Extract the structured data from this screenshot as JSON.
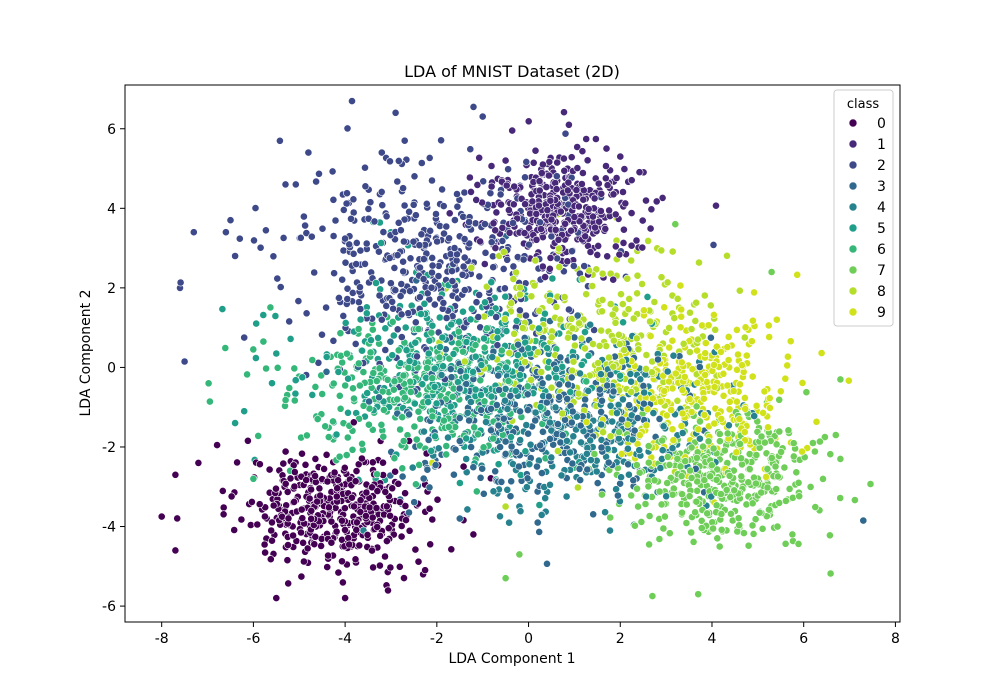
{
  "chart_data": {
    "type": "scatter",
    "title": "LDA of MNIST Dataset (2D)",
    "xlabel": "LDA Component 1",
    "ylabel": "LDA Component 2",
    "xlim": [
      -8.8,
      8.1
    ],
    "ylim": [
      -6.4,
      7.1
    ],
    "xticks": [
      "-8",
      "-6",
      "-4",
      "-2",
      "0",
      "2",
      "4",
      "6",
      "8"
    ],
    "xtick_values": [
      -8,
      -6,
      -4,
      -2,
      0,
      2,
      4,
      6,
      8
    ],
    "yticks": [
      "-6",
      "-4",
      "-2",
      "0",
      "2",
      "4",
      "6"
    ],
    "ytick_values": [
      -6,
      -4,
      -2,
      0,
      2,
      4,
      6
    ],
    "grid": false,
    "legend": {
      "title": "class",
      "placement": "top-right",
      "entries": [
        "0",
        "1",
        "2",
        "3",
        "4",
        "5",
        "6",
        "7",
        "8",
        "9"
      ]
    },
    "series": [
      {
        "name": "0",
        "color": "#440154",
        "center": [
          -4.2,
          -3.6
        ],
        "spread": [
          1.0,
          0.75
        ],
        "count": 450,
        "outliers": [
          [
            -8.0,
            -3.75
          ],
          [
            -7.7,
            -4.6
          ],
          [
            -7.7,
            -2.7
          ],
          [
            -7.2,
            -2.4
          ],
          [
            -5.5,
            -5.8
          ],
          [
            -4.0,
            -5.8
          ],
          [
            -2.3,
            -5.2
          ]
        ]
      },
      {
        "name": "1",
        "color": "#482878",
        "center": [
          0.7,
          4.0
        ],
        "spread": [
          0.9,
          0.75
        ],
        "count": 380,
        "outliers": [
          [
            1.7,
            5.5
          ],
          [
            2.0,
            5.3
          ],
          [
            -0.5,
            5.2
          ]
        ]
      },
      {
        "name": "2",
        "color": "#3e4989",
        "center": [
          -2.0,
          2.6
        ],
        "spread": [
          1.6,
          1.25
        ],
        "count": 460,
        "outliers": [
          [
            -7.6,
            2.0
          ],
          [
            -7.5,
            0.15
          ],
          [
            -7.3,
            3.4
          ],
          [
            -6.5,
            3.7
          ],
          [
            -6.6,
            3.4
          ],
          [
            -6.4,
            2.8
          ],
          [
            -4.8,
            5.4
          ],
          [
            -3.2,
            5.4
          ],
          [
            -2.9,
            6.4
          ],
          [
            -1.2,
            6.55
          ],
          [
            -5.3,
            4.6
          ],
          [
            -2.7,
            5.7
          ],
          [
            -6.2,
            0.75
          ]
        ]
      },
      {
        "name": "3",
        "color": "#31688e",
        "center": [
          0.0,
          -1.2
        ],
        "spread": [
          1.5,
          1.1
        ],
        "count": 360,
        "outliers": [
          [
            7.3,
            -3.85
          ],
          [
            -1.5,
            -3.8
          ],
          [
            0.2,
            -3.9
          ]
        ]
      },
      {
        "name": "4",
        "color": "#26828e",
        "center": [
          1.3,
          -1.4
        ],
        "spread": [
          1.5,
          1.0
        ],
        "count": 320,
        "outliers": [
          [
            -3.6,
            -4.1
          ],
          [
            -0.2,
            -3.5
          ]
        ]
      },
      {
        "name": "5",
        "color": "#1f9e89",
        "center": [
          -1.5,
          0.0
        ],
        "spread": [
          1.6,
          1.1
        ],
        "count": 380,
        "outliers": [
          [
            -6.2,
            -1.1
          ],
          [
            -6.4,
            -1.4
          ],
          [
            -5.5,
            0.35
          ],
          [
            -3.0,
            3.4
          ]
        ]
      },
      {
        "name": "6",
        "color": "#35b779",
        "center": [
          -2.3,
          -0.6
        ],
        "spread": [
          1.6,
          0.9
        ],
        "count": 360,
        "outliers": [
          [
            -6.0,
            -2.8
          ],
          [
            -5.2,
            -2.6
          ]
        ]
      },
      {
        "name": "7",
        "color": "#6ece58",
        "center": [
          4.2,
          -2.7
        ],
        "spread": [
          1.1,
          0.8
        ],
        "count": 420,
        "outliers": [
          [
            6.8,
            -0.3
          ],
          [
            6.7,
            -1.7
          ],
          [
            6.8,
            -2.3
          ],
          [
            6.2,
            -1.9
          ],
          [
            5.3,
            2.4
          ],
          [
            3.7,
            -5.7
          ],
          [
            2.7,
            -5.75
          ],
          [
            -0.5,
            -5.3
          ],
          [
            -0.2,
            -4.7
          ],
          [
            3.2,
            3.6
          ]
        ]
      },
      {
        "name": "8",
        "color": "#b5de2b",
        "center": [
          1.5,
          0.6
        ],
        "spread": [
          1.4,
          1.2
        ],
        "count": 320,
        "outliers": [
          [
            -0.5,
            -3.5
          ]
        ]
      },
      {
        "name": "9",
        "color": "#d1e21b",
        "center": [
          3.7,
          -0.6
        ],
        "spread": [
          1.0,
          0.9
        ],
        "count": 320,
        "outliers": [
          [
            5.5,
            -0.6
          ],
          [
            -2.1,
            -2.4
          ]
        ]
      }
    ]
  }
}
